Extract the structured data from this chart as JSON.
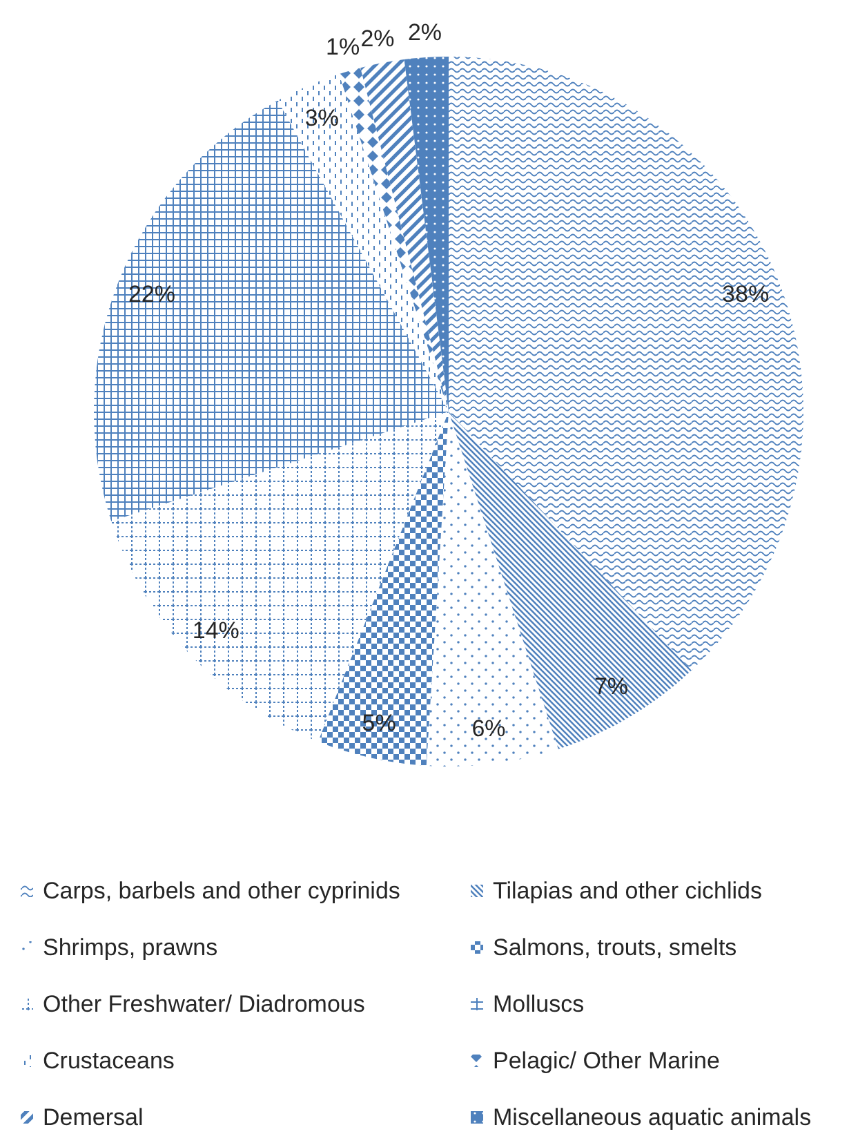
{
  "chart_data": {
    "type": "pie",
    "categories": [
      "Carps, barbels and other cyprinids",
      "Tilapias and other cichlids",
      "Shrimps, prawns",
      "Salmons, trouts, smelts",
      "Other Freshwater/ Diadromous",
      "Molluscs",
      "Crustaceans",
      "Pelagic/ Other Marine",
      "Demersal",
      "Miscellaneous aquatic animals"
    ],
    "values": [
      38,
      7,
      6,
      5,
      14,
      22,
      3,
      1,
      2,
      2
    ],
    "value_labels": [
      "38%",
      "7%",
      "6%",
      "5%",
      "14%",
      "22%",
      "3%",
      "1%",
      "2%",
      "2%"
    ],
    "colors": [
      "#4f81bd",
      "#4f81bd",
      "#4f81bd",
      "#4f81bd",
      "#4f81bd",
      "#4f81bd",
      "#4f81bd",
      "#4f81bd",
      "#4f81bd",
      "#4f81bd"
    ],
    "legend": "bottom"
  }
}
